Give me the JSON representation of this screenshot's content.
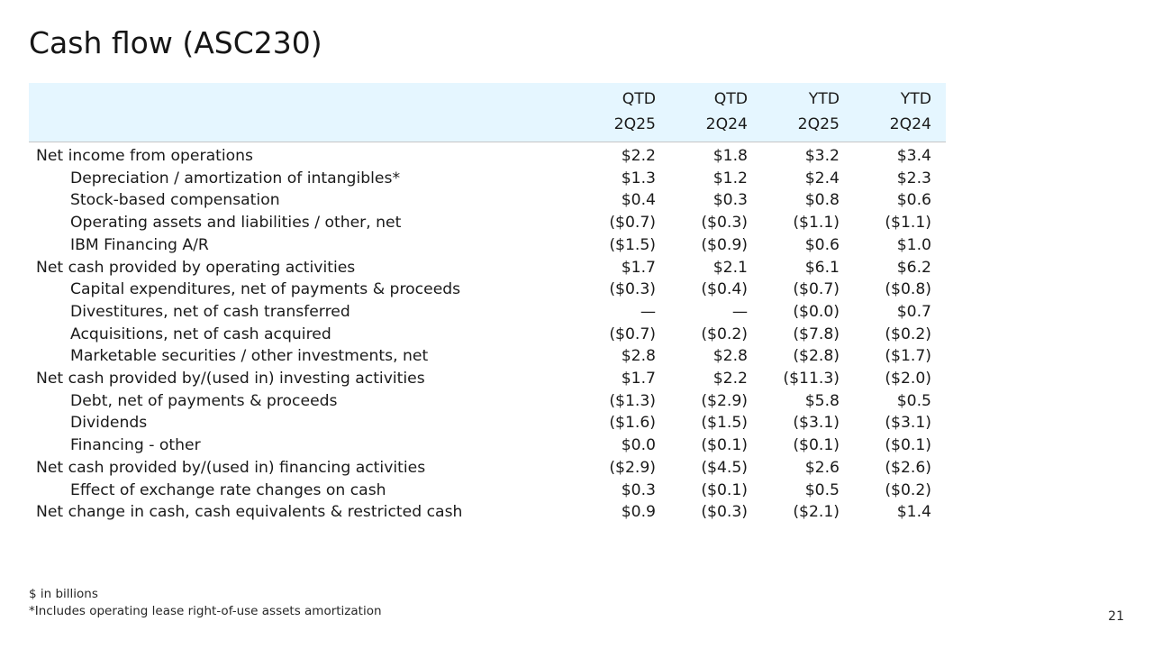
{
  "title": "Cash flow (ASC230)",
  "columns": [
    {
      "line1": "QTD",
      "line2": "2Q25"
    },
    {
      "line1": "QTD",
      "line2": "2Q24"
    },
    {
      "line1": "YTD",
      "line2": "2Q25"
    },
    {
      "line1": "YTD",
      "line2": "2Q24"
    }
  ],
  "rows": [
    {
      "label": "Net income from operations",
      "indent": false,
      "values": [
        "$2.2",
        "$1.8",
        "$3.2",
        "$3.4"
      ]
    },
    {
      "label": "Depreciation / amortization of intangibles*",
      "indent": true,
      "values": [
        "$1.3",
        "$1.2",
        "$2.4",
        "$2.3"
      ]
    },
    {
      "label": "Stock-based compensation",
      "indent": true,
      "values": [
        "$0.4",
        "$0.3",
        "$0.8",
        "$0.6"
      ]
    },
    {
      "label": "Operating assets and liabilities / other, net",
      "indent": true,
      "values": [
        "($0.7)",
        "($0.3)",
        "($1.1)",
        "($1.1)"
      ]
    },
    {
      "label": "IBM Financing  A/R",
      "indent": true,
      "values": [
        "($1.5)",
        "($0.9)",
        "$0.6",
        "$1.0"
      ]
    },
    {
      "label": "Net cash provided by operating activities",
      "indent": false,
      "values": [
        "$1.7",
        "$2.1",
        "$6.1",
        "$6.2"
      ]
    },
    {
      "label": "Capital expenditures, net of payments & proceeds",
      "indent": true,
      "values": [
        "($0.3)",
        "($0.4)",
        "($0.7)",
        "($0.8)"
      ]
    },
    {
      "label": "Divestitures, net of cash transferred",
      "indent": true,
      "values": [
        "—",
        "—",
        "($0.0)",
        "$0.7"
      ]
    },
    {
      "label": "Acquisitions, net of cash acquired",
      "indent": true,
      "values": [
        "($0.7)",
        "($0.2)",
        "($7.8)",
        "($0.2)"
      ]
    },
    {
      "label": "Marketable securities / other investments, net",
      "indent": true,
      "values": [
        "$2.8",
        "$2.8",
        "($2.8)",
        "($1.7)"
      ]
    },
    {
      "label": "Net cash provided by/(used in) investing activities",
      "indent": false,
      "values": [
        "$1.7",
        "$2.2",
        "($11.3)",
        "($2.0)"
      ]
    },
    {
      "label": "Debt, net of payments & proceeds",
      "indent": true,
      "values": [
        "($1.3)",
        "($2.9)",
        "$5.8",
        "$0.5"
      ]
    },
    {
      "label": "Dividends",
      "indent": true,
      "values": [
        "($1.6)",
        "($1.5)",
        "($3.1)",
        "($3.1)"
      ]
    },
    {
      "label": "Financing - other",
      "indent": true,
      "values": [
        "$0.0",
        "($0.1)",
        "($0.1)",
        "($0.1)"
      ]
    },
    {
      "label": "Net cash provided by/(used in) financing activities",
      "indent": false,
      "values": [
        "($2.9)",
        "($4.5)",
        "$2.6",
        "($2.6)"
      ]
    },
    {
      "label": "Effect of exchange rate changes on cash",
      "indent": true,
      "values": [
        "$0.3",
        "($0.1)",
        "$0.5",
        "($0.2)"
      ]
    },
    {
      "label": "Net change in cash, cash equivalents & restricted cash",
      "indent": false,
      "values": [
        "$0.9",
        "($0.3)",
        "($2.1)",
        "$1.4"
      ]
    }
  ],
  "footnotes": {
    "units": "$ in billions",
    "note": "*Includes operating lease right-of-use assets amortization"
  },
  "page_number": "21",
  "colors": {
    "header_bg": "#e5f6ff",
    "text": "#161616"
  }
}
